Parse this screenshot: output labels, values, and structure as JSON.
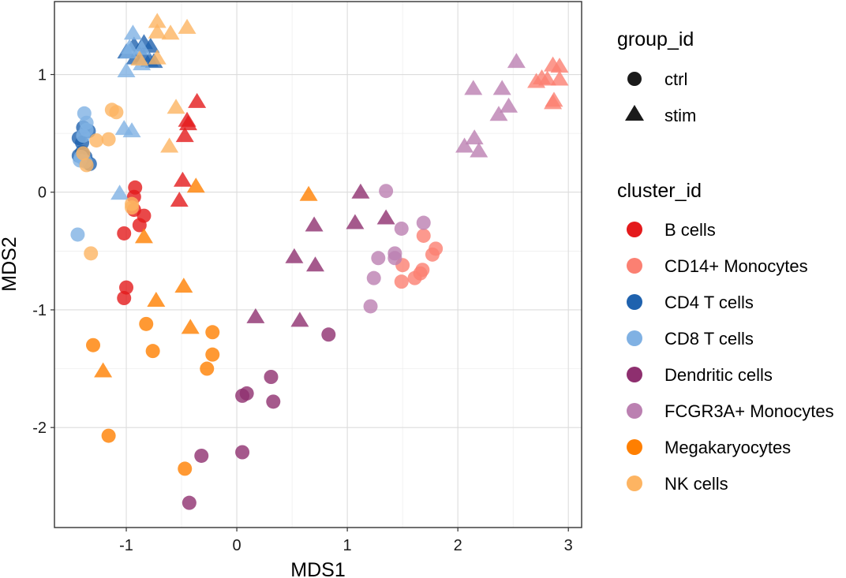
{
  "chart_data": {
    "type": "scatter",
    "xlabel": "MDS1",
    "ylabel": "MDS2",
    "xlim": [
      -1.65,
      3.12
    ],
    "ylim": [
      -2.85,
      1.62
    ],
    "xticks": [
      -1,
      0,
      1,
      2,
      3
    ],
    "yticks": [
      -2,
      -1,
      0,
      1
    ],
    "grid": true,
    "shape_legend": {
      "title": "group_id",
      "entries": [
        {
          "label": "ctrl",
          "shape": "circle"
        },
        {
          "label": "stim",
          "shape": "triangle"
        }
      ]
    },
    "color_legend": {
      "title": "cluster_id",
      "entries": [
        {
          "label": "B cells",
          "color": "#E41A1C"
        },
        {
          "label": "CD14+ Monocytes",
          "color": "#FB8072"
        },
        {
          "label": "CD4 T cells",
          "color": "#1F62AE"
        },
        {
          "label": "CD8 T cells",
          "color": "#80B1E3"
        },
        {
          "label": "Dendritic cells",
          "color": "#8E2F6F"
        },
        {
          "label": "FCGR3A+ Monocytes",
          "color": "#BB80B1"
        },
        {
          "label": "Megakaryocytes",
          "color": "#FF7F00"
        },
        {
          "label": "NK cells",
          "color": "#FDB462"
        }
      ]
    },
    "series": [
      {
        "cluster": "B cells",
        "group": "ctrl",
        "points": [
          [
            -0.92,
            0.04
          ],
          [
            -0.93,
            -0.04
          ],
          [
            -0.93,
            -0.15
          ],
          [
            -0.84,
            -0.2
          ],
          [
            -0.88,
            -0.28
          ],
          [
            -1.02,
            -0.35
          ],
          [
            -1.0,
            -0.81
          ],
          [
            -1.02,
            -0.9
          ]
        ]
      },
      {
        "cluster": "B cells",
        "group": "stim",
        "points": [
          [
            -0.36,
            0.77
          ],
          [
            -0.45,
            0.61
          ],
          [
            -0.44,
            0.58
          ],
          [
            -0.47,
            0.48
          ],
          [
            -0.49,
            0.1
          ],
          [
            -0.52,
            -0.07
          ]
        ]
      },
      {
        "cluster": "CD14+ Monocytes",
        "group": "ctrl",
        "points": [
          [
            1.69,
            -0.37
          ],
          [
            1.8,
            -0.48
          ],
          [
            1.77,
            -0.53
          ],
          [
            1.5,
            -0.62
          ],
          [
            1.68,
            -0.66
          ],
          [
            1.66,
            -0.69
          ],
          [
            1.61,
            -0.73
          ],
          [
            1.49,
            -0.76
          ]
        ]
      },
      {
        "cluster": "CD14+ Monocytes",
        "group": "stim",
        "points": [
          [
            2.76,
            0.97
          ],
          [
            2.86,
            1.08
          ],
          [
            2.92,
            1.07
          ],
          [
            2.71,
            0.94
          ],
          [
            2.81,
            0.96
          ],
          [
            2.92,
            0.96
          ],
          [
            2.87,
            0.78
          ],
          [
            2.86,
            0.76
          ]
        ]
      },
      {
        "cluster": "CD4 T cells",
        "group": "ctrl",
        "points": [
          [
            -1.43,
            0.46
          ],
          [
            -1.4,
            0.42
          ],
          [
            -1.39,
            0.55
          ],
          [
            -1.34,
            0.52
          ],
          [
            -1.43,
            0.31
          ],
          [
            -1.37,
            0.3
          ],
          [
            -1.33,
            0.24
          ],
          [
            -1.4,
            0.34
          ]
        ]
      },
      {
        "cluster": "CD4 T cells",
        "group": "stim",
        "points": [
          [
            -0.93,
            1.25
          ],
          [
            -1.0,
            1.19
          ],
          [
            -0.92,
            1.14
          ],
          [
            -0.84,
            1.27
          ],
          [
            -0.78,
            1.24
          ],
          [
            -0.85,
            1.16
          ],
          [
            -0.75,
            1.11
          ],
          [
            -0.79,
            1.12
          ]
        ]
      },
      {
        "cluster": "CD8 T cells",
        "group": "ctrl",
        "points": [
          [
            -1.38,
            0.67
          ],
          [
            -1.36,
            0.59
          ],
          [
            -1.36,
            0.53
          ],
          [
            -1.39,
            0.48
          ],
          [
            -1.41,
            0.3
          ],
          [
            -1.37,
            0.26
          ],
          [
            -1.42,
            0.27
          ],
          [
            -1.44,
            -0.36
          ]
        ]
      },
      {
        "cluster": "CD8 T cells",
        "group": "stim",
        "points": [
          [
            -0.94,
            1.35
          ],
          [
            -0.97,
            1.23
          ],
          [
            -0.98,
            1.19
          ],
          [
            -0.86,
            1.22
          ],
          [
            -1.0,
            1.03
          ],
          [
            -0.86,
            1.09
          ],
          [
            -1.02,
            0.54
          ],
          [
            -0.95,
            0.52
          ],
          [
            -1.06,
            -0.01
          ]
        ]
      },
      {
        "cluster": "Dendritic cells",
        "group": "ctrl",
        "points": [
          [
            0.83,
            -1.21
          ],
          [
            0.31,
            -1.57
          ],
          [
            0.33,
            -1.78
          ],
          [
            0.09,
            -1.71
          ],
          [
            0.05,
            -1.73
          ],
          [
            0.05,
            -2.21
          ],
          [
            -0.32,
            -2.24
          ],
          [
            -0.43,
            -2.64
          ]
        ]
      },
      {
        "cluster": "Dendritic cells",
        "group": "stim",
        "points": [
          [
            1.12,
            0.0
          ],
          [
            1.35,
            -0.22
          ],
          [
            1.07,
            -0.26
          ],
          [
            0.7,
            -0.28
          ],
          [
            0.52,
            -0.55
          ],
          [
            0.71,
            -0.62
          ],
          [
            0.17,
            -1.06
          ],
          [
            0.57,
            -1.09
          ]
        ]
      },
      {
        "cluster": "FCGR3A+ Monocytes",
        "group": "ctrl",
        "points": [
          [
            1.35,
            0.01
          ],
          [
            1.69,
            -0.26
          ],
          [
            1.49,
            -0.31
          ],
          [
            1.28,
            -0.56
          ],
          [
            1.43,
            -0.56
          ],
          [
            1.43,
            -0.52
          ],
          [
            1.24,
            -0.73
          ],
          [
            1.21,
            -0.97
          ]
        ]
      },
      {
        "cluster": "FCGR3A+ Monocytes",
        "group": "stim",
        "points": [
          [
            2.53,
            1.11
          ],
          [
            2.14,
            0.88
          ],
          [
            2.4,
            0.88
          ],
          [
            2.46,
            0.73
          ],
          [
            2.37,
            0.66
          ],
          [
            2.15,
            0.46
          ],
          [
            2.06,
            0.39
          ],
          [
            2.19,
            0.35
          ]
        ]
      },
      {
        "cluster": "Megakaryocytes",
        "group": "ctrl",
        "points": [
          [
            -0.82,
            -1.12
          ],
          [
            -0.22,
            -1.19
          ],
          [
            -1.3,
            -1.3
          ],
          [
            -0.76,
            -1.35
          ],
          [
            -0.22,
            -1.38
          ],
          [
            -0.27,
            -1.5
          ],
          [
            -1.16,
            -2.07
          ],
          [
            -0.47,
            -2.35
          ]
        ]
      },
      {
        "cluster": "Megakaryocytes",
        "group": "stim",
        "points": [
          [
            0.65,
            -0.02
          ],
          [
            -0.37,
            0.05
          ],
          [
            -0.84,
            -0.38
          ],
          [
            -0.48,
            -0.8
          ],
          [
            -0.73,
            -0.92
          ],
          [
            -0.42,
            -1.15
          ],
          [
            -1.21,
            -1.52
          ]
        ]
      },
      {
        "cluster": "NK cells",
        "group": "ctrl",
        "points": [
          [
            -1.13,
            0.7
          ],
          [
            -1.09,
            0.68
          ],
          [
            -1.27,
            0.44
          ],
          [
            -1.16,
            0.45
          ],
          [
            -1.39,
            0.33
          ],
          [
            -1.36,
            0.23
          ],
          [
            -0.95,
            -0.13
          ],
          [
            -0.95,
            -0.1
          ],
          [
            -1.32,
            -0.52
          ]
        ]
      },
      {
        "cluster": "NK cells",
        "group": "stim",
        "points": [
          [
            -0.72,
            1.45
          ],
          [
            -0.72,
            1.36
          ],
          [
            -0.6,
            1.35
          ],
          [
            -0.45,
            1.4
          ],
          [
            -0.88,
            1.13
          ],
          [
            -0.72,
            1.14
          ],
          [
            -0.55,
            0.72
          ],
          [
            -0.61,
            0.39
          ]
        ]
      }
    ]
  }
}
